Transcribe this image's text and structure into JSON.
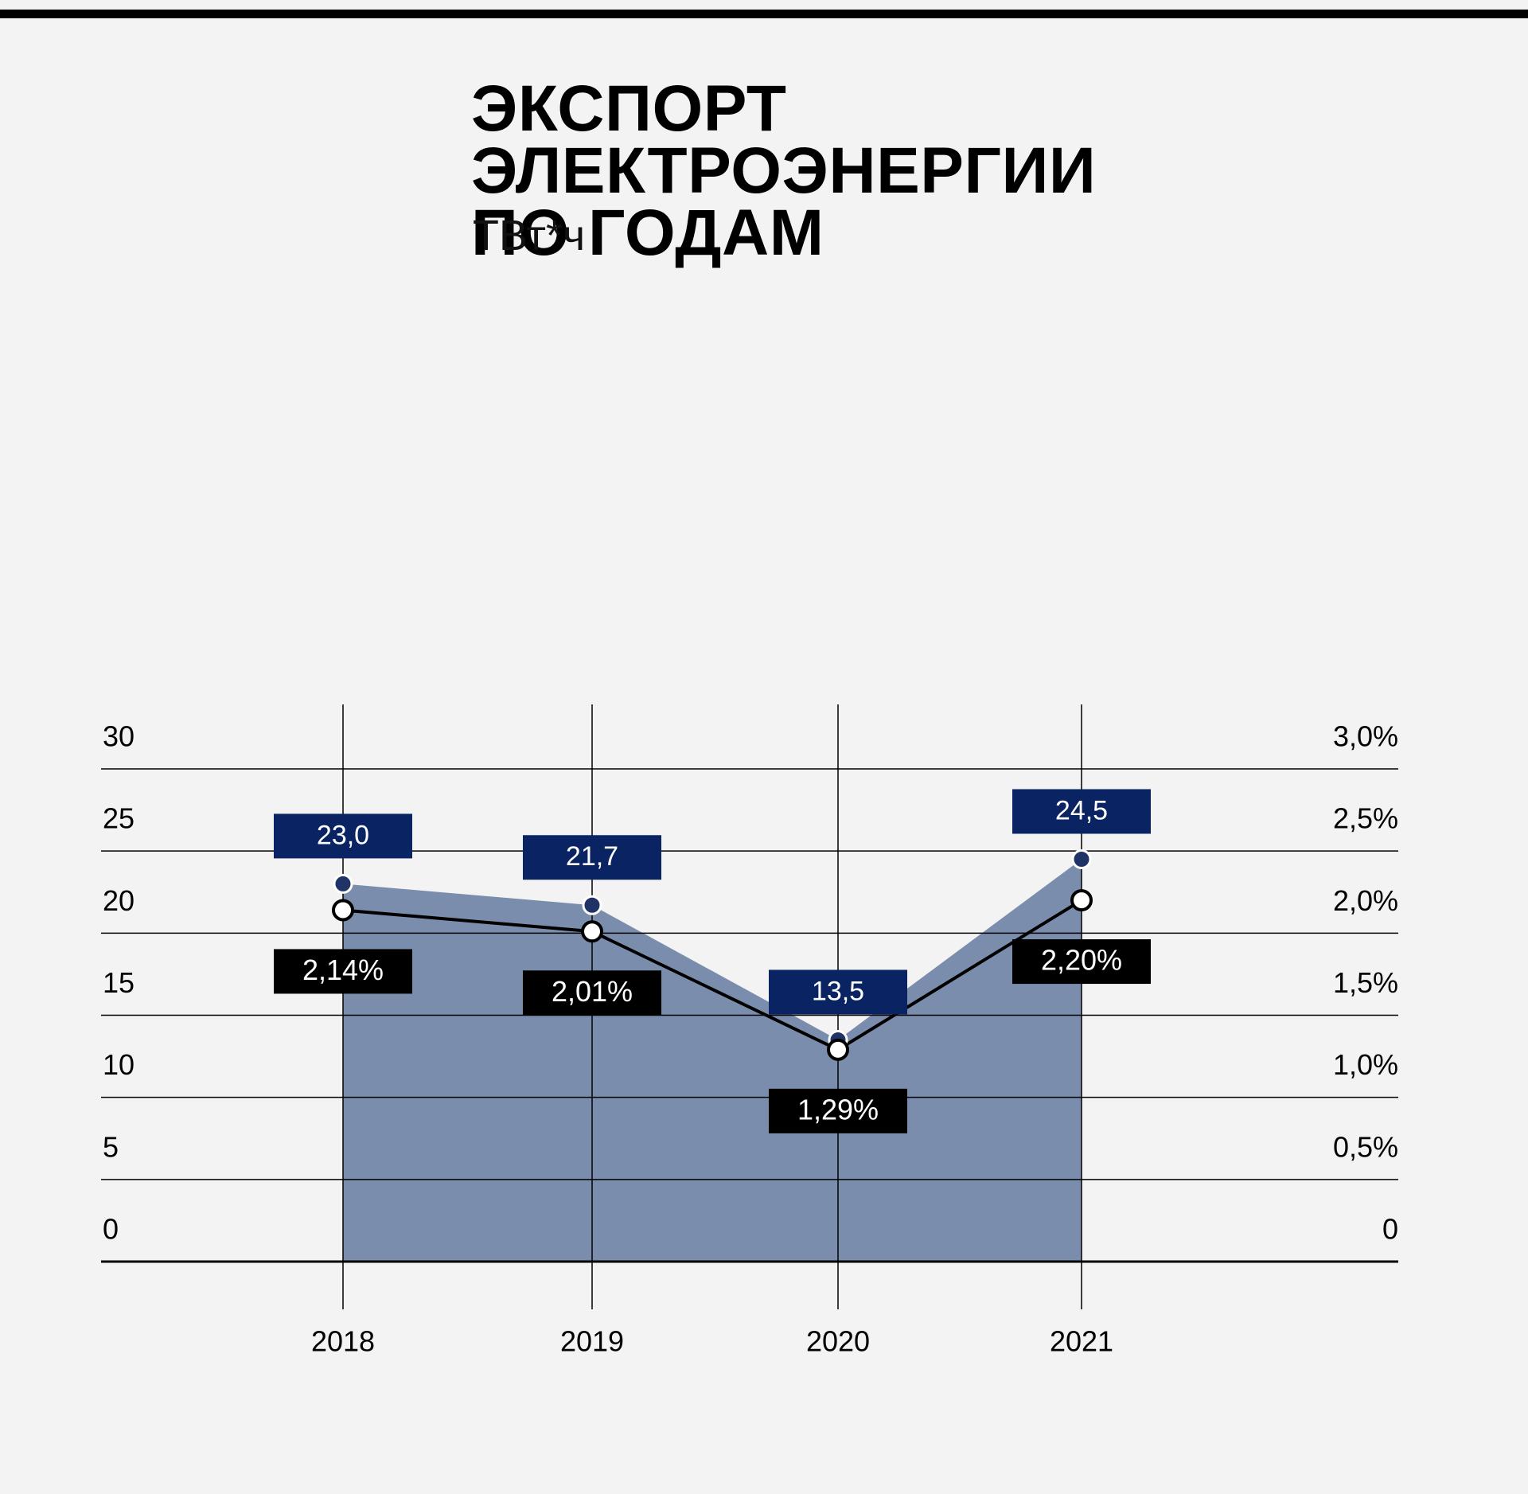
{
  "title": "ЭКСПОРТ ЭЛЕКТРОЭНЕРГИИ\nПО ГОДАМ",
  "unit": "ТВт*ч",
  "colors": {
    "background": "#f3f3f3",
    "area_fill": "#7b8dad",
    "value_label_bg": "#0a2463",
    "percent_label_bg": "#000000",
    "line": "#000000",
    "marker_dark": "#1f3366"
  },
  "chart_data": {
    "type": "area",
    "categories": [
      "2018",
      "2019",
      "2020",
      "2021"
    ],
    "series": [
      {
        "kind": "area",
        "axis": "left",
        "values": [
          23.0,
          21.7,
          13.5,
          24.5
        ],
        "labels": [
          "23,0",
          "21,7",
          "13,5",
          "24,5"
        ]
      },
      {
        "kind": "line",
        "axis": "right",
        "values": [
          2.14,
          2.01,
          1.29,
          2.2
        ],
        "labels": [
          "2,14%",
          "2,01%",
          "1,29%",
          "2,20%"
        ]
      }
    ],
    "y_left": {
      "ylim": [
        0,
        30
      ],
      "ticks": [
        "0",
        "5",
        "10",
        "15",
        "20",
        "25",
        "30"
      ]
    },
    "y_right": {
      "ylim": [
        0,
        3.0
      ],
      "ticks": [
        "0",
        "0,5%",
        "1,0%",
        "1,5%",
        "2,0%",
        "2,5%",
        "3,0%"
      ]
    },
    "grid": true
  }
}
